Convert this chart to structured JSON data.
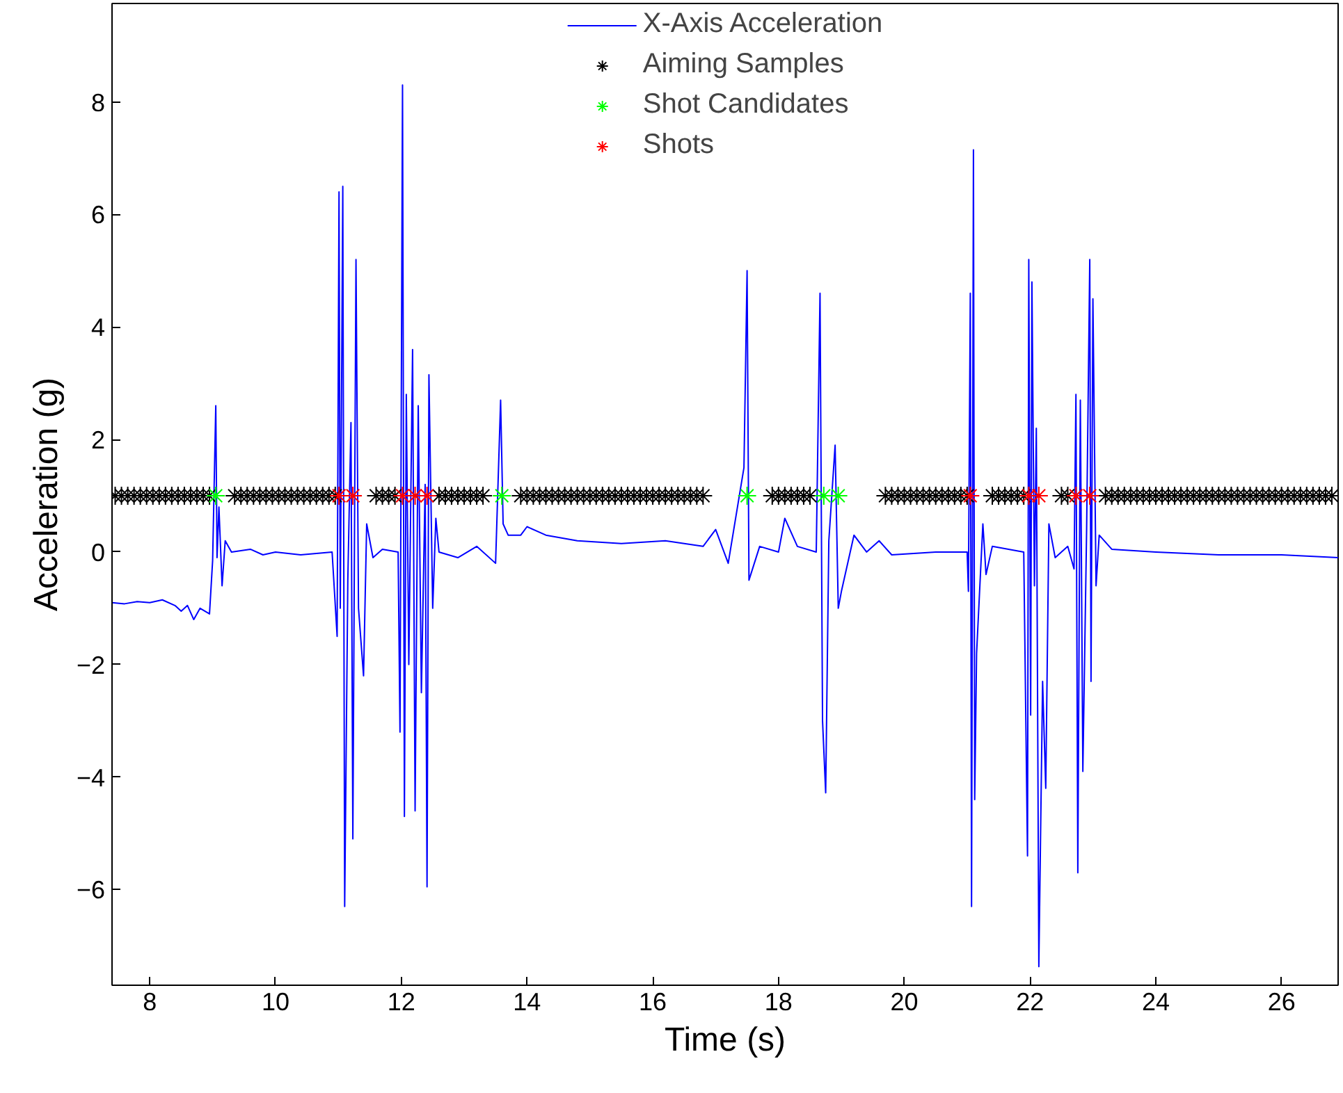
{
  "chart_data": {
    "type": "line",
    "xlabel": "Time (s)",
    "ylabel": "Acceleration (g)",
    "xlim": [
      7.4,
      26.9
    ],
    "ylim": [
      -7.7,
      9.75
    ],
    "xticks": [
      8,
      10,
      12,
      14,
      16,
      18,
      20,
      22,
      24,
      26
    ],
    "yticks": [
      -6,
      -4,
      -2,
      0,
      2,
      4,
      6,
      8
    ],
    "grid": false,
    "legend": "top",
    "series": [
      {
        "name": "X-Axis Acceleration",
        "color": "#0000ff",
        "line_style": "solid",
        "marker": "none",
        "x": [
          7.4,
          7.6,
          7.8,
          8.0,
          8.2,
          8.4,
          8.5,
          8.6,
          8.7,
          8.8,
          8.95,
          9.0,
          9.05,
          9.07,
          9.1,
          9.15,
          9.2,
          9.3,
          9.6,
          9.8,
          10.0,
          10.4,
          10.9,
          10.98,
          11.01,
          11.03,
          11.07,
          11.1,
          11.15,
          11.2,
          11.23,
          11.28,
          11.32,
          11.4,
          11.45,
          11.55,
          11.7,
          11.95,
          11.98,
          12.02,
          12.05,
          12.08,
          12.12,
          12.18,
          12.22,
          12.27,
          12.32,
          12.38,
          12.41,
          12.44,
          12.5,
          12.55,
          12.6,
          12.9,
          13.2,
          13.5,
          13.58,
          13.62,
          13.7,
          13.9,
          14.0,
          14.3,
          14.8,
          15.5,
          16.2,
          16.8,
          17.0,
          17.2,
          17.45,
          17.5,
          17.53,
          17.7,
          18.0,
          18.1,
          18.3,
          18.6,
          18.66,
          18.7,
          18.75,
          18.8,
          18.9,
          18.95,
          19.0,
          19.2,
          19.4,
          19.6,
          19.8,
          20.5,
          21.0,
          21.02,
          21.05,
          21.07,
          21.1,
          21.12,
          21.15,
          21.25,
          21.3,
          21.4,
          21.9,
          21.96,
          21.98,
          22.01,
          22.03,
          22.07,
          22.1,
          22.14,
          22.2,
          22.25,
          22.3,
          22.4,
          22.6,
          22.7,
          22.73,
          22.76,
          22.8,
          22.84,
          22.9,
          22.95,
          22.97,
          23.0,
          23.05,
          23.1,
          23.3,
          24.0,
          25.0,
          26.0,
          26.9
        ],
        "values": [
          -0.9,
          -0.92,
          -0.88,
          -0.9,
          -0.85,
          -0.95,
          -1.05,
          -0.95,
          -1.2,
          -1.0,
          -1.1,
          -0.15,
          2.6,
          -0.1,
          0.8,
          -0.6,
          0.2,
          0.0,
          0.05,
          -0.05,
          0.0,
          -0.05,
          0.0,
          -1.5,
          6.4,
          -1.0,
          6.5,
          -6.3,
          -0.5,
          2.3,
          -5.1,
          5.2,
          -1.0,
          -2.2,
          0.5,
          -0.1,
          0.05,
          0.0,
          -3.2,
          8.3,
          -4.7,
          2.8,
          -2.0,
          3.6,
          -4.6,
          2.6,
          -2.5,
          1.2,
          -5.95,
          3.15,
          -1.0,
          0.6,
          0.0,
          -0.1,
          0.1,
          -0.2,
          2.7,
          0.5,
          0.3,
          0.3,
          0.45,
          0.3,
          0.2,
          0.15,
          0.2,
          0.1,
          0.4,
          -0.2,
          1.5,
          5.0,
          -0.5,
          0.1,
          0.0,
          0.6,
          0.1,
          0.0,
          4.6,
          -3.0,
          -4.28,
          0.2,
          1.9,
          -1.0,
          -0.7,
          0.3,
          0.0,
          0.2,
          -0.05,
          0.0,
          0.0,
          -0.7,
          4.6,
          -6.3,
          7.15,
          -4.4,
          -1.8,
          0.5,
          -0.4,
          0.1,
          0.0,
          -5.4,
          5.2,
          -2.9,
          4.8,
          -0.6,
          2.2,
          -7.37,
          -2.3,
          -4.2,
          0.5,
          -0.1,
          0.1,
          -0.3,
          2.8,
          -5.7,
          2.7,
          -3.9,
          0.4,
          5.2,
          -2.3,
          4.5,
          -0.6,
          0.3,
          0.05,
          0.0,
          -0.05,
          -0.05,
          -0.1
        ]
      },
      {
        "name": "Aiming Samples",
        "type": "scatter",
        "color": "#000000",
        "marker": "cross",
        "x": [
          7.45,
          7.55,
          7.65,
          7.75,
          7.85,
          7.95,
          8.05,
          8.15,
          8.25,
          8.35,
          8.45,
          8.55,
          8.65,
          8.75,
          8.85,
          8.95,
          9.35,
          9.45,
          9.55,
          9.65,
          9.75,
          9.85,
          9.95,
          10.05,
          10.15,
          10.25,
          10.35,
          10.45,
          10.55,
          10.65,
          10.75,
          10.85,
          10.95,
          11.6,
          11.7,
          11.8,
          11.9,
          12.6,
          12.7,
          12.8,
          12.9,
          13.0,
          13.1,
          13.2,
          13.3,
          13.9,
          14.0,
          14.1,
          14.2,
          14.3,
          14.4,
          14.5,
          14.6,
          14.7,
          14.8,
          14.9,
          15.0,
          15.1,
          15.2,
          15.3,
          15.4,
          15.5,
          15.6,
          15.7,
          15.8,
          15.9,
          16.0,
          16.1,
          16.2,
          16.3,
          16.4,
          16.5,
          16.6,
          16.7,
          16.8,
          17.9,
          18.0,
          18.1,
          18.2,
          18.3,
          18.4,
          18.5,
          19.7,
          19.8,
          19.9,
          20.0,
          20.1,
          20.2,
          20.3,
          20.4,
          20.5,
          20.6,
          20.7,
          20.8,
          20.9,
          21.0,
          21.4,
          21.5,
          21.6,
          21.7,
          21.8,
          21.9,
          22.5,
          22.6,
          23.2,
          23.3,
          23.4,
          23.5,
          23.6,
          23.7,
          23.8,
          23.9,
          24.0,
          24.1,
          24.2,
          24.3,
          24.4,
          24.5,
          24.6,
          24.7,
          24.8,
          24.9,
          25.0,
          25.1,
          25.2,
          25.3,
          25.4,
          25.5,
          25.6,
          25.7,
          25.8,
          25.9,
          26.0,
          26.1,
          26.2,
          26.3,
          26.4,
          26.5,
          26.6,
          26.7,
          26.8
        ],
        "values": [
          1,
          1,
          1,
          1,
          1,
          1,
          1,
          1,
          1,
          1,
          1,
          1,
          1,
          1,
          1,
          1,
          1,
          1,
          1,
          1,
          1,
          1,
          1,
          1,
          1,
          1,
          1,
          1,
          1,
          1,
          1,
          1,
          1,
          1,
          1,
          1,
          1,
          1,
          1,
          1,
          1,
          1,
          1,
          1,
          1,
          1,
          1,
          1,
          1,
          1,
          1,
          1,
          1,
          1,
          1,
          1,
          1,
          1,
          1,
          1,
          1,
          1,
          1,
          1,
          1,
          1,
          1,
          1,
          1,
          1,
          1,
          1,
          1,
          1,
          1,
          1,
          1,
          1,
          1,
          1,
          1,
          1,
          1,
          1,
          1,
          1,
          1,
          1,
          1,
          1,
          1,
          1,
          1,
          1,
          1,
          1,
          1,
          1,
          1,
          1,
          1,
          1,
          1,
          1,
          1,
          1,
          1,
          1,
          1,
          1,
          1,
          1,
          1,
          1,
          1,
          1,
          1,
          1,
          1,
          1,
          1,
          1,
          1,
          1,
          1,
          1,
          1,
          1,
          1,
          1,
          1,
          1,
          1,
          1,
          1,
          1,
          1,
          1,
          1,
          1,
          1
        ]
      },
      {
        "name": "Shot Candidates",
        "type": "scatter",
        "color": "#00ff00",
        "marker": "cross",
        "x": [
          9.05,
          13.6,
          17.5,
          18.72,
          18.95
        ],
        "values": [
          1,
          1,
          1,
          1,
          1
        ]
      },
      {
        "name": "Shots",
        "type": "scatter",
        "color": "#ff0000",
        "marker": "cross",
        "x": [
          11.01,
          11.23,
          12.02,
          12.22,
          12.41,
          21.05,
          21.98,
          22.14,
          22.73,
          22.95
        ],
        "values": [
          1,
          1,
          1,
          1,
          1,
          1,
          1,
          1,
          1,
          1
        ]
      }
    ]
  }
}
